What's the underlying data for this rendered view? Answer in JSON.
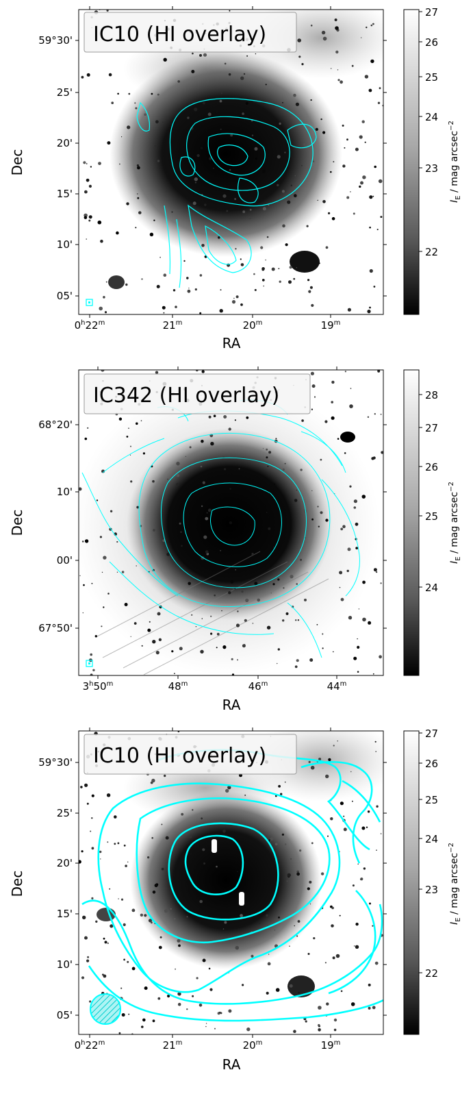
{
  "chart_data": [
    {
      "type": "heatmap",
      "title": "IC10 (HI overlay)",
      "xlabel": "RA",
      "ylabel": "Dec",
      "x_ticks": [
        {
          "h": "0",
          "hs": "h",
          "m": "22",
          "ms": "m"
        },
        {
          "h": "",
          "hs": "",
          "m": "21",
          "ms": "m"
        },
        {
          "h": "",
          "hs": "",
          "m": "20",
          "ms": "m"
        },
        {
          "h": "",
          "hs": "",
          "m": "19",
          "ms": "m"
        }
      ],
      "y_ticks": [
        "59°30'",
        "25'",
        "20'",
        "15'",
        "10'",
        "05'"
      ],
      "colorbar": {
        "label_main": "I",
        "label_sub": "E",
        "label_rest": " / mag arcsec",
        "label_exp": "−2",
        "ticks": [
          "27",
          "26",
          "25",
          "24",
          "23",
          "22"
        ],
        "direction": "bright values at top, black at bottom"
      },
      "overlay": "HI contours (cyan), high-resolution",
      "beam": "small square, bottom-left",
      "colors": {
        "contour": "#00ffff",
        "sky": "#ffffff",
        "galaxy": "#000000"
      }
    },
    {
      "type": "heatmap",
      "title": "IC342 (HI overlay)",
      "xlabel": "RA",
      "ylabel": "Dec",
      "x_ticks": [
        {
          "h": "3",
          "hs": "h",
          "m": "50",
          "ms": "m"
        },
        {
          "h": "",
          "hs": "",
          "m": "48",
          "ms": "m"
        },
        {
          "h": "",
          "hs": "",
          "m": "46",
          "ms": "m"
        },
        {
          "h": "",
          "hs": "",
          "m": "44",
          "ms": "m"
        }
      ],
      "y_ticks": [
        "68°20'",
        "10'",
        "00'",
        "67°50'"
      ],
      "colorbar": {
        "label_main": "I",
        "label_sub": "E",
        "label_rest": " / mag arcsec",
        "label_exp": "−2",
        "ticks": [
          "28",
          "27",
          "26",
          "25",
          "24"
        ],
        "direction": "bright values at top, black at bottom"
      },
      "overlay": "HI contours (cyan), high-resolution",
      "beam": "small square, bottom-left",
      "colors": {
        "contour": "#00ffff",
        "sky": "#ffffff",
        "galaxy": "#000000"
      }
    },
    {
      "type": "heatmap",
      "title": "IC10 (HI overlay)",
      "xlabel": "RA",
      "ylabel": "Dec",
      "x_ticks": [
        {
          "h": "0",
          "hs": "h",
          "m": "22",
          "ms": "m"
        },
        {
          "h": "",
          "hs": "",
          "m": "21",
          "ms": "m"
        },
        {
          "h": "",
          "hs": "",
          "m": "20",
          "ms": "m"
        },
        {
          "h": "",
          "hs": "",
          "m": "19",
          "ms": "m"
        }
      ],
      "y_ticks": [
        "59°30'",
        "25'",
        "20'",
        "15'",
        "10'",
        "05'"
      ],
      "colorbar": {
        "label_main": "I",
        "label_sub": "E",
        "label_rest": " / mag arcsec",
        "label_exp": "−2",
        "ticks": [
          "27",
          "26",
          "25",
          "24",
          "23",
          "22"
        ],
        "direction": "bright values at top, black at bottom"
      },
      "overlay": "HI contours (cyan), low-resolution",
      "beam": "large hatched circle, bottom-left",
      "colors": {
        "contour": "#00ffff",
        "sky": "#ffffff",
        "galaxy": "#000000"
      }
    }
  ]
}
